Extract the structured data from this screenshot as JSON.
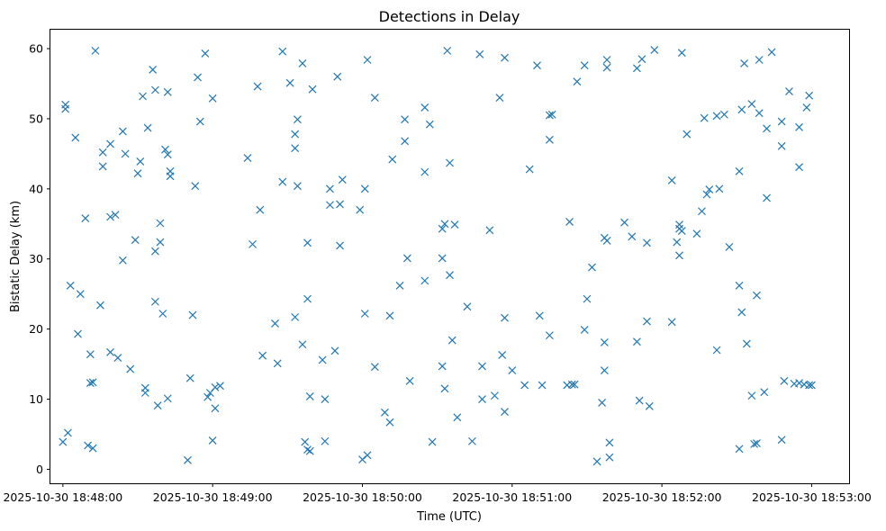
{
  "chart_data": {
    "type": "scatter",
    "title": "Detections in Delay",
    "xlabel": "Time (UTC)",
    "ylabel": "Bistatic Delay (km)",
    "x_axis": {
      "type": "datetime",
      "min": "2025-10-30 18:47:55",
      "max": "2025-10-30 18:53:15",
      "ticks": [
        "2025-10-30 18:48:00",
        "2025-10-30 18:49:00",
        "2025-10-30 18:50:00",
        "2025-10-30 18:51:00",
        "2025-10-30 18:52:00",
        "2025-10-30 18:53:00"
      ]
    },
    "y_axis": {
      "min": -2,
      "max": 62.7,
      "ticks": [
        0,
        10,
        20,
        30,
        40,
        50,
        60
      ]
    },
    "grid": false,
    "legend": "none",
    "marker": "x",
    "series": [
      {
        "color": "#1f77b4",
        "points": [
          [
            "18:48:00",
            3.9
          ],
          [
            "18:48:01",
            52.0
          ],
          [
            "18:48:01",
            51.4
          ],
          [
            "18:48:02",
            5.2
          ],
          [
            "18:48:03",
            26.2
          ],
          [
            "18:48:05",
            47.3
          ],
          [
            "18:48:06",
            19.3
          ],
          [
            "18:48:07",
            25.0
          ],
          [
            "18:48:09",
            35.8
          ],
          [
            "18:48:10",
            3.4
          ],
          [
            "18:48:11",
            16.4
          ],
          [
            "18:48:11",
            12.3
          ],
          [
            "18:48:12",
            12.4
          ],
          [
            "18:48:12",
            3.0
          ],
          [
            "18:48:13",
            59.7
          ],
          [
            "18:48:15",
            23.4
          ],
          [
            "18:48:16",
            45.2
          ],
          [
            "18:48:16",
            43.2
          ],
          [
            "18:48:19",
            16.7
          ],
          [
            "18:48:19",
            36.0
          ],
          [
            "18:48:19",
            46.4
          ],
          [
            "18:48:21",
            36.3
          ],
          [
            "18:48:22",
            15.9
          ],
          [
            "18:48:24",
            48.2
          ],
          [
            "18:48:25",
            45.0
          ],
          [
            "18:48:24",
            29.8
          ],
          [
            "18:48:27",
            14.3
          ],
          [
            "18:48:29",
            32.7
          ],
          [
            "18:48:30",
            42.2
          ],
          [
            "18:48:31",
            43.9
          ],
          [
            "18:48:32",
            53.2
          ],
          [
            "18:48:33",
            10.9
          ],
          [
            "18:48:33",
            11.6
          ],
          [
            "18:48:34",
            48.7
          ],
          [
            "18:48:36",
            57.0
          ],
          [
            "18:48:37",
            54.1
          ],
          [
            "18:48:37",
            31.1
          ],
          [
            "18:48:37",
            23.9
          ],
          [
            "18:48:38",
            9.1
          ],
          [
            "18:48:39",
            35.1
          ],
          [
            "18:48:39",
            32.4
          ],
          [
            "18:48:40",
            22.2
          ],
          [
            "18:48:41",
            45.6
          ],
          [
            "18:48:42",
            10.1
          ],
          [
            "18:48:42",
            44.9
          ],
          [
            "18:48:42",
            53.8
          ],
          [
            "18:48:43",
            42.5
          ],
          [
            "18:48:43",
            41.8
          ],
          [
            "18:48:50",
            1.3
          ],
          [
            "18:48:51",
            13.0
          ],
          [
            "18:48:52",
            22.0
          ],
          [
            "18:48:53",
            40.4
          ],
          [
            "18:48:54",
            55.9
          ],
          [
            "18:48:55",
            49.6
          ],
          [
            "18:48:57",
            59.3
          ],
          [
            "18:48:58",
            10.3
          ],
          [
            "18:48:59",
            10.9
          ],
          [
            "18:49:00",
            52.9
          ],
          [
            "18:49:00",
            4.1
          ],
          [
            "18:49:01",
            8.7
          ],
          [
            "18:49:01",
            11.7
          ],
          [
            "18:49:03",
            11.9
          ],
          [
            "18:49:14",
            44.4
          ],
          [
            "18:49:16",
            32.1
          ],
          [
            "18:49:18",
            54.6
          ],
          [
            "18:49:19",
            37.0
          ],
          [
            "18:49:20",
            16.2
          ],
          [
            "18:49:25",
            20.8
          ],
          [
            "18:49:26",
            15.1
          ],
          [
            "18:49:28",
            59.6
          ],
          [
            "18:49:28",
            41.0
          ],
          [
            "18:49:31",
            55.1
          ],
          [
            "18:49:33",
            21.7
          ],
          [
            "18:49:33",
            45.8
          ],
          [
            "18:49:33",
            47.8
          ],
          [
            "18:49:34",
            49.9
          ],
          [
            "18:49:34",
            40.4
          ],
          [
            "18:49:36",
            57.9
          ],
          [
            "18:49:36",
            17.8
          ],
          [
            "18:49:37",
            3.9
          ],
          [
            "18:49:38",
            2.8
          ],
          [
            "18:49:38",
            24.3
          ],
          [
            "18:49:38",
            32.3
          ],
          [
            "18:49:39",
            2.6
          ],
          [
            "18:49:39",
            10.4
          ],
          [
            "18:49:40",
            54.2
          ],
          [
            "18:49:44",
            15.6
          ],
          [
            "18:49:45",
            4.0
          ],
          [
            "18:49:45",
            10.0
          ],
          [
            "18:49:47",
            40.0
          ],
          [
            "18:49:47",
            37.7
          ],
          [
            "18:49:49",
            16.9
          ],
          [
            "18:49:50",
            56.0
          ],
          [
            "18:49:51",
            31.9
          ],
          [
            "18:49:51",
            37.8
          ],
          [
            "18:49:52",
            41.3
          ],
          [
            "18:49:59",
            37.0
          ],
          [
            "18:50:00",
            1.4
          ],
          [
            "18:50:01",
            40.0
          ],
          [
            "18:50:01",
            22.2
          ],
          [
            "18:50:02",
            58.4
          ],
          [
            "18:50:02",
            2.0
          ],
          [
            "18:50:05",
            53.0
          ],
          [
            "18:50:05",
            14.6
          ],
          [
            "18:50:09",
            8.1
          ],
          [
            "18:50:11",
            21.9
          ],
          [
            "18:50:11",
            6.7
          ],
          [
            "18:50:12",
            44.2
          ],
          [
            "18:50:15",
            26.2
          ],
          [
            "18:50:17",
            49.9
          ],
          [
            "18:50:17",
            46.8
          ],
          [
            "18:50:18",
            30.1
          ],
          [
            "18:50:19",
            12.6
          ],
          [
            "18:50:25",
            51.6
          ],
          [
            "18:50:25",
            42.4
          ],
          [
            "18:50:25",
            26.9
          ],
          [
            "18:50:27",
            49.2
          ],
          [
            "18:50:28",
            3.9
          ],
          [
            "18:50:32",
            30.1
          ],
          [
            "18:50:32",
            34.3
          ],
          [
            "18:50:32",
            14.7
          ],
          [
            "18:50:33",
            11.5
          ],
          [
            "18:50:33",
            35.0
          ],
          [
            "18:50:34",
            59.7
          ],
          [
            "18:50:35",
            43.7
          ],
          [
            "18:50:35",
            27.7
          ],
          [
            "18:50:36",
            18.4
          ],
          [
            "18:50:37",
            34.9
          ],
          [
            "18:50:38",
            7.4
          ],
          [
            "18:50:42",
            23.2
          ],
          [
            "18:50:44",
            4.0
          ],
          [
            "18:50:47",
            59.2
          ],
          [
            "18:50:48",
            14.7
          ],
          [
            "18:50:48",
            10.0
          ],
          [
            "18:50:51",
            34.1
          ],
          [
            "18:50:53",
            10.5
          ],
          [
            "18:50:55",
            53.0
          ],
          [
            "18:50:56",
            16.3
          ],
          [
            "18:50:57",
            21.6
          ],
          [
            "18:50:57",
            8.2
          ],
          [
            "18:50:57",
            58.7
          ],
          [
            "18:51:00",
            14.1
          ],
          [
            "18:51:05",
            12.0
          ],
          [
            "18:51:07",
            42.8
          ],
          [
            "18:51:10",
            57.6
          ],
          [
            "18:51:11",
            21.9
          ],
          [
            "18:51:12",
            12.0
          ],
          [
            "18:51:15",
            50.5
          ],
          [
            "18:51:15",
            47.0
          ],
          [
            "18:51:15",
            19.1
          ],
          [
            "18:51:16",
            50.6
          ],
          [
            "18:51:22",
            12.0
          ],
          [
            "18:51:23",
            35.3
          ],
          [
            "18:51:24",
            12.1
          ],
          [
            "18:51:25",
            12.1
          ],
          [
            "18:51:26",
            55.3
          ],
          [
            "18:51:29",
            57.6
          ],
          [
            "18:51:29",
            19.9
          ],
          [
            "18:51:30",
            24.3
          ],
          [
            "18:51:32",
            28.8
          ],
          [
            "18:51:34",
            1.1
          ],
          [
            "18:51:36",
            9.5
          ],
          [
            "18:51:37",
            33.0
          ],
          [
            "18:51:37",
            14.1
          ],
          [
            "18:51:37",
            18.1
          ],
          [
            "18:51:38",
            57.3
          ],
          [
            "18:51:38",
            58.4
          ],
          [
            "18:51:38",
            32.6
          ],
          [
            "18:51:39",
            1.7
          ],
          [
            "18:51:39",
            3.8
          ],
          [
            "18:51:45",
            35.2
          ],
          [
            "18:51:48",
            33.2
          ],
          [
            "18:51:50",
            57.2
          ],
          [
            "18:51:50",
            18.2
          ],
          [
            "18:51:51",
            9.8
          ],
          [
            "18:51:52",
            58.5
          ],
          [
            "18:51:54",
            32.3
          ],
          [
            "18:51:54",
            21.1
          ],
          [
            "18:51:55",
            9.0
          ],
          [
            "18:51:57",
            59.8
          ],
          [
            "18:52:04",
            41.2
          ],
          [
            "18:52:04",
            21.0
          ],
          [
            "18:52:06",
            32.4
          ],
          [
            "18:52:07",
            30.5
          ],
          [
            "18:52:07",
            34.9
          ],
          [
            "18:52:07",
            34.3
          ],
          [
            "18:52:08",
            34.0
          ],
          [
            "18:52:08",
            59.4
          ],
          [
            "18:52:10",
            47.8
          ],
          [
            "18:52:14",
            33.6
          ],
          [
            "18:52:16",
            36.8
          ],
          [
            "18:52:17",
            50.1
          ],
          [
            "18:52:19",
            39.9
          ],
          [
            "18:52:18",
            39.2
          ],
          [
            "18:52:22",
            50.4
          ],
          [
            "18:52:22",
            17.0
          ],
          [
            "18:52:23",
            40.0
          ],
          [
            "18:52:25",
            50.6
          ],
          [
            "18:52:27",
            31.7
          ],
          [
            "18:52:31",
            2.9
          ],
          [
            "18:52:31",
            26.2
          ],
          [
            "18:52:32",
            22.4
          ],
          [
            "18:52:31",
            42.5
          ],
          [
            "18:52:32",
            51.3
          ],
          [
            "18:52:33",
            57.9
          ],
          [
            "18:52:34",
            17.9
          ],
          [
            "18:52:36",
            52.1
          ],
          [
            "18:52:36",
            10.5
          ],
          [
            "18:52:37",
            3.6
          ],
          [
            "18:52:38",
            3.7
          ],
          [
            "18:52:38",
            24.8
          ],
          [
            "18:52:39",
            50.8
          ],
          [
            "18:52:39",
            58.4
          ],
          [
            "18:52:41",
            11.0
          ],
          [
            "18:52:42",
            48.6
          ],
          [
            "18:52:42",
            38.7
          ],
          [
            "18:52:44",
            59.5
          ],
          [
            "18:52:48",
            46.1
          ],
          [
            "18:52:48",
            49.6
          ],
          [
            "18:52:48",
            4.2
          ],
          [
            "18:52:49",
            12.6
          ],
          [
            "18:52:51",
            53.9
          ],
          [
            "18:52:53",
            12.2
          ],
          [
            "18:52:55",
            12.3
          ],
          [
            "18:52:55",
            43.1
          ],
          [
            "18:52:55",
            48.8
          ],
          [
            "18:52:57",
            12.1
          ],
          [
            "18:52:58",
            51.6
          ],
          [
            "18:52:59",
            53.3
          ],
          [
            "18:52:59",
            12.0
          ],
          [
            "18:53:00",
            12.0
          ]
        ]
      }
    ]
  }
}
